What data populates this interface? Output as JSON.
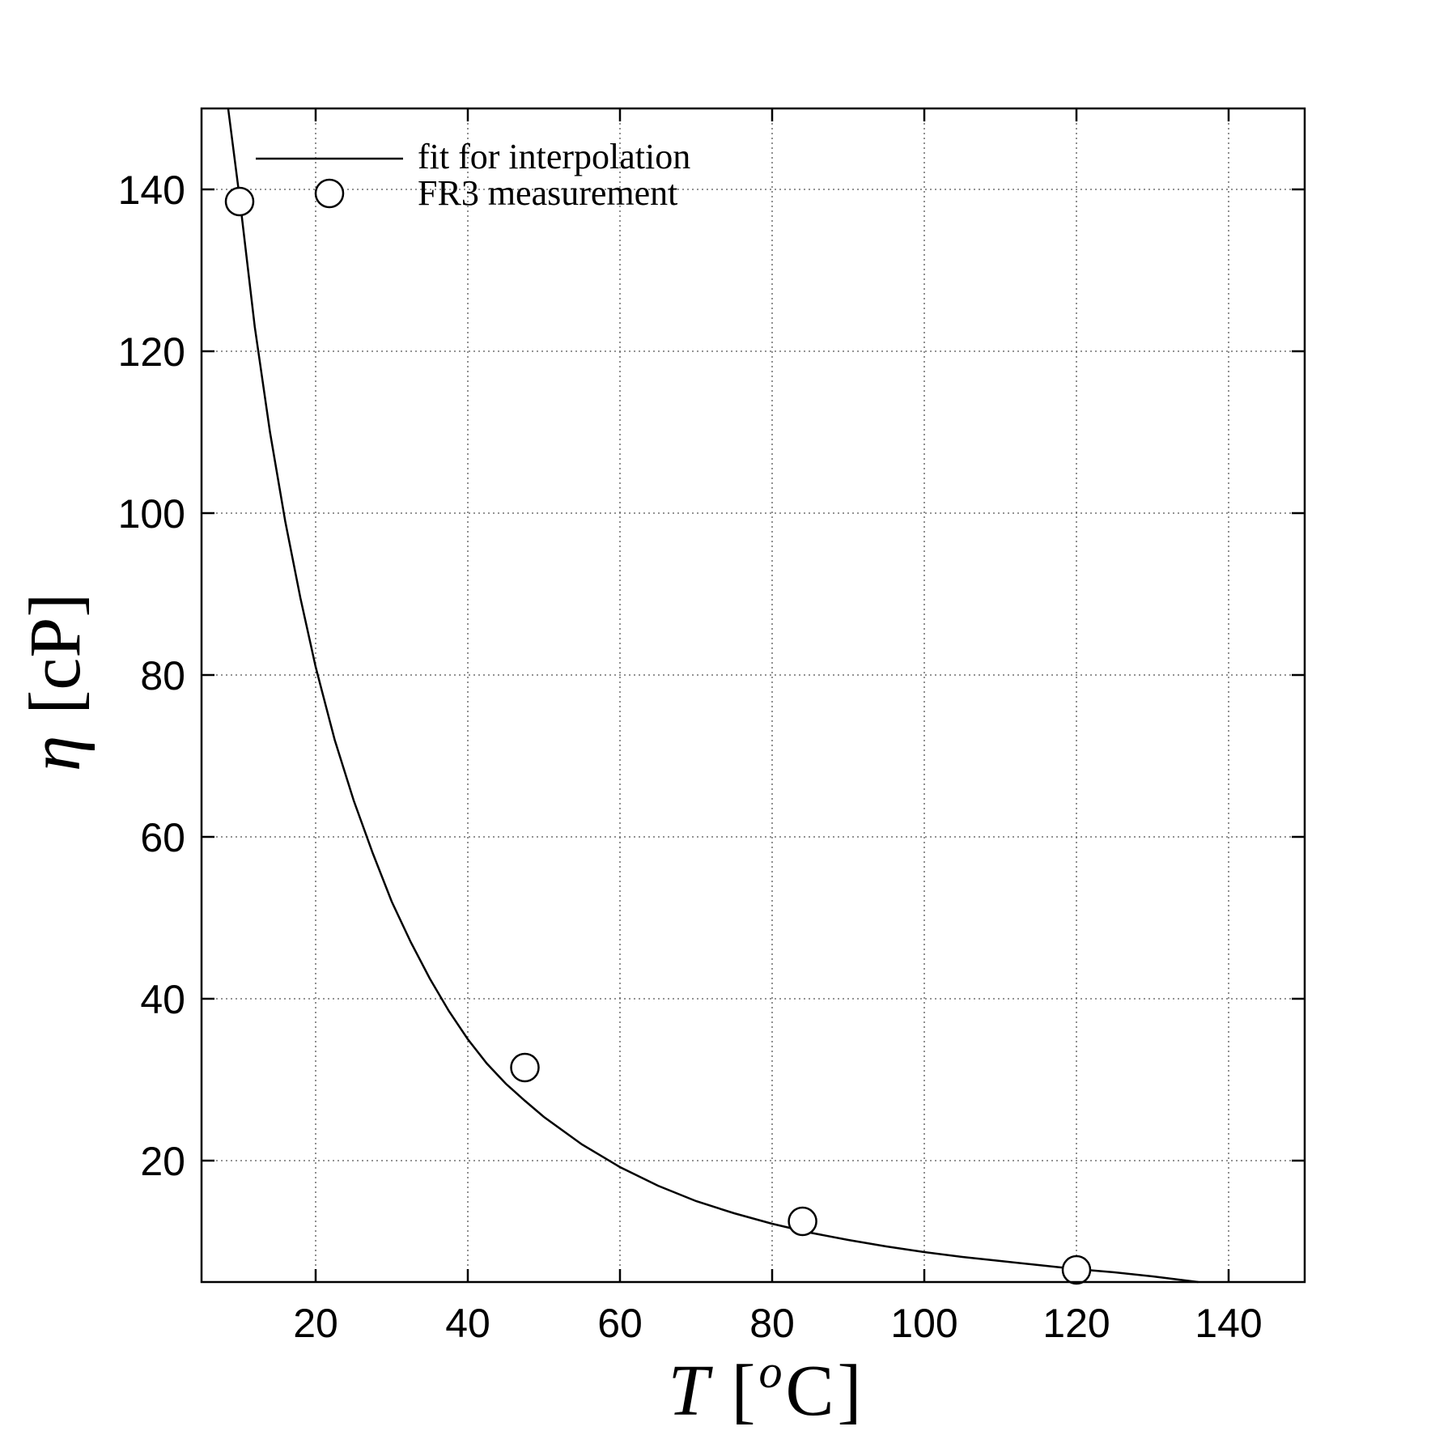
{
  "chart_data": {
    "type": "line",
    "xlabel": "T [oC]",
    "ylabel": "η [cP]",
    "xlabel_parts": {
      "main": "T",
      "open": "[",
      "sup": "o",
      "unit": "C",
      "close": "]"
    },
    "ylabel_parts": {
      "symbol": "η",
      "unit": "[cP]"
    },
    "xlim": [
      5,
      150
    ],
    "ylim": [
      5,
      150
    ],
    "xticks": [
      20,
      40,
      60,
      80,
      100,
      120,
      140
    ],
    "yticks": [
      20,
      40,
      60,
      80,
      100,
      120,
      140
    ],
    "grid": true,
    "legend_position": "top-left",
    "series": [
      {
        "name": "fit for interpolation",
        "kind": "line",
        "color": "#000000",
        "x": [
          8.5,
          10,
          12,
          14,
          16,
          18,
          20,
          22.5,
          25,
          27.5,
          30,
          32.5,
          35,
          37.5,
          40,
          42.5,
          45,
          47.5,
          50,
          55,
          60,
          65,
          70,
          75,
          80,
          85,
          90,
          95,
          100,
          105,
          110,
          115,
          120,
          125,
          130,
          136
        ],
        "y": [
          150,
          139,
          123,
          110,
          99,
          89.5,
          81,
          72,
          64.5,
          58,
          52,
          47,
          42.5,
          38.5,
          35,
          32,
          29.5,
          27.4,
          25.4,
          22,
          19.2,
          16.9,
          15.0,
          13.5,
          12.2,
          11.1,
          10.2,
          9.4,
          8.7,
          8.1,
          7.6,
          7.1,
          6.6,
          6.2,
          5.7,
          5
        ]
      },
      {
        "name": "FR3 measurement",
        "kind": "scatter",
        "marker": "open-circle",
        "x": [
          10,
          47.5,
          84,
          120
        ],
        "y": [
          138.5,
          31.5,
          12.5,
          6.5
        ]
      }
    ]
  }
}
